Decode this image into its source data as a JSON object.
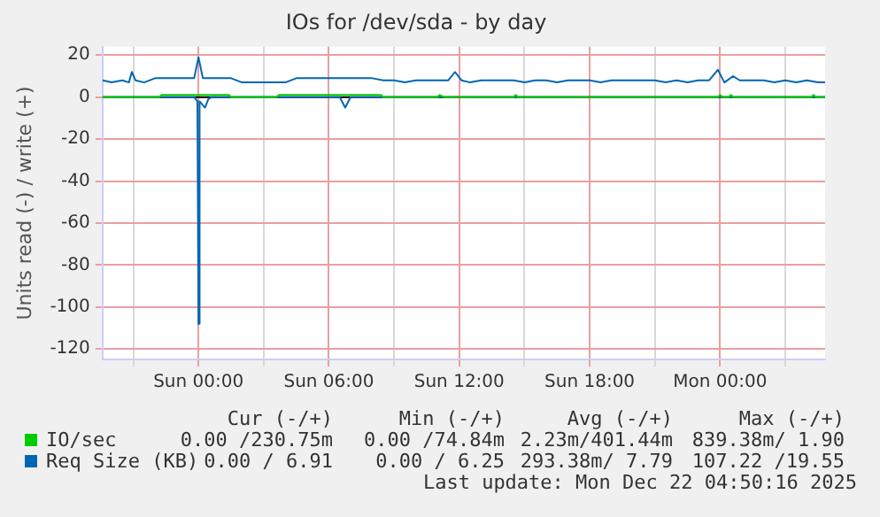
{
  "chart_data": {
    "type": "line",
    "title": "IOs for /dev/sda - by day",
    "ylabel": "Units read (-) / write (+)",
    "xlim": [
      "2025-12-20T19:35",
      "2025-12-22T04:50"
    ],
    "xticks": [
      {
        "value": "2025-12-20T21:00",
        "label": null
      },
      {
        "value": "2025-12-21T00:00",
        "label": "Sun 00:00"
      },
      {
        "value": "2025-12-21T03:00",
        "label": null
      },
      {
        "value": "2025-12-21T06:00",
        "label": "Sun 06:00"
      },
      {
        "value": "2025-12-21T09:00",
        "label": null
      },
      {
        "value": "2025-12-21T12:00",
        "label": "Sun 12:00"
      },
      {
        "value": "2025-12-21T15:00",
        "label": null
      },
      {
        "value": "2025-12-21T18:00",
        "label": "Sun 18:00"
      },
      {
        "value": "2025-12-21T21:00",
        "label": null
      },
      {
        "value": "2025-12-22T00:00",
        "label": "Mon 00:00"
      },
      {
        "value": "2025-12-22T03:00",
        "label": null
      }
    ],
    "ylim": [
      -125,
      24
    ],
    "yticks": [
      -120,
      -100,
      -80,
      -60,
      -40,
      -20,
      0,
      20
    ],
    "grid": true,
    "legend": "bottom",
    "marker": "none",
    "line_style": "solid",
    "ref_lines": [
      {
        "axis": "y",
        "value": 0,
        "color": "#000000"
      }
    ],
    "series": [
      {
        "name": "IO/sec",
        "color": "#00cc00",
        "x": [
          "2025-12-20T19:35",
          "2025-12-20T22:12",
          "2025-12-20T22:18",
          "2025-12-21T01:24",
          "2025-12-21T01:30",
          "2025-12-21T03:36",
          "2025-12-21T03:42",
          "2025-12-21T08:24",
          "2025-12-21T08:30",
          "2025-12-21T11:00",
          "2025-12-21T11:06",
          "2025-12-21T11:18",
          "2025-12-21T14:30",
          "2025-12-21T14:36",
          "2025-12-21T14:42",
          "2025-12-21T23:54",
          "2025-12-22T00:00",
          "2025-12-22T00:06",
          "2025-12-22T00:24",
          "2025-12-22T00:30",
          "2025-12-22T00:36",
          "2025-12-22T04:12",
          "2025-12-22T04:18",
          "2025-12-22T04:24",
          "2025-12-22T04:50"
        ],
        "values": [
          0,
          0,
          1,
          1,
          0,
          0,
          1,
          1,
          0,
          0,
          1,
          0,
          0,
          1,
          0,
          0,
          1,
          0,
          0,
          1,
          0,
          0,
          1,
          0,
          0
        ]
      },
      {
        "name": "Req Size (KB)",
        "color": "#0066b3",
        "x": [
          "2025-12-20T19:35",
          "2025-12-20T20:00",
          "2025-12-20T20:30",
          "2025-12-20T20:48",
          "2025-12-20T20:56",
          "2025-12-20T21:06",
          "2025-12-20T21:30",
          "2025-12-20T22:00",
          "2025-12-20T22:30",
          "2025-12-20T23:00",
          "2025-12-20T23:30",
          "2025-12-20T23:48",
          "2025-12-21T00:00",
          "2025-12-21T00:12",
          "2025-12-21T00:30",
          "2025-12-21T01:00",
          "2025-12-21T01:30",
          "2025-12-21T02:00",
          "2025-12-21T02:30",
          "2025-12-21T03:00",
          "2025-12-21T03:30",
          "2025-12-21T04:00",
          "2025-12-21T04:30",
          "2025-12-21T05:00",
          "2025-12-21T05:30",
          "2025-12-21T06:00",
          "2025-12-21T06:30",
          "2025-12-21T07:00",
          "2025-12-21T07:30",
          "2025-12-21T08:00",
          "2025-12-21T08:30",
          "2025-12-21T09:00",
          "2025-12-21T09:30",
          "2025-12-21T10:00",
          "2025-12-21T10:30",
          "2025-12-21T11:00",
          "2025-12-21T11:30",
          "2025-12-21T11:48",
          "2025-12-21T12:06",
          "2025-12-21T12:30",
          "2025-12-21T13:00",
          "2025-12-21T13:30",
          "2025-12-21T14:00",
          "2025-12-21T14:30",
          "2025-12-21T15:00",
          "2025-12-21T15:30",
          "2025-12-21T16:00",
          "2025-12-21T16:30",
          "2025-12-21T17:00",
          "2025-12-21T17:30",
          "2025-12-21T18:00",
          "2025-12-21T18:30",
          "2025-12-21T19:00",
          "2025-12-21T19:30",
          "2025-12-21T20:00",
          "2025-12-21T20:30",
          "2025-12-21T21:00",
          "2025-12-21T21:30",
          "2025-12-21T22:00",
          "2025-12-21T22:30",
          "2025-12-21T23:00",
          "2025-12-21T23:30",
          "2025-12-21T23:54",
          "2025-12-22T00:12",
          "2025-12-22T00:36",
          "2025-12-22T00:54",
          "2025-12-22T01:30",
          "2025-12-22T02:00",
          "2025-12-22T02:30",
          "2025-12-22T03:00",
          "2025-12-22T03:30",
          "2025-12-22T04:00",
          "2025-12-22T04:30",
          "2025-12-22T04:50"
        ],
        "values": [
          8,
          7,
          8,
          7,
          12,
          8,
          7,
          9,
          9,
          9,
          9,
          9,
          19,
          9,
          9,
          9,
          9,
          7,
          7,
          7,
          7,
          7,
          9,
          9,
          9,
          9,
          9,
          9,
          9,
          9,
          8,
          8,
          7,
          8,
          8,
          8,
          8,
          12,
          8,
          7,
          8,
          8,
          8,
          8,
          7,
          8,
          8,
          7,
          8,
          8,
          8,
          7,
          8,
          8,
          8,
          8,
          8,
          7,
          8,
          7,
          8,
          8,
          13,
          7,
          10,
          8,
          8,
          8,
          7,
          8,
          7,
          8,
          7,
          7
        ]
      },
      {
        "color": "#0066b3",
        "x": [
          "2025-12-20T19:35",
          "2025-12-20T23:48",
          "2025-12-20T23:57",
          "2025-12-21T00:00",
          "2025-12-21T00:03",
          "2025-12-21T00:18",
          "2025-12-21T00:27",
          "2025-12-21T00:36",
          "2025-12-21T06:30",
          "2025-12-21T06:45",
          "2025-12-21T07:00",
          "2025-12-22T04:50"
        ],
        "values": [
          0,
          0,
          -2,
          -108,
          -2,
          -5,
          -1,
          0,
          0,
          -5,
          0,
          0
        ]
      }
    ],
    "annotations": [
      "Cur (-/+)",
      "Min (-/+)",
      "Avg (-/+)",
      "Max (-/+)",
      "0.00 /230.75m",
      "0.00 /74.84m",
      "2.23m/401.44m",
      "839.38m/ 1.90",
      "0.00 / 6.91",
      "0.00 / 6.25",
      "293.38m/ 7.79",
      "107.22 /19.55",
      "Last update: Mon Dec 22 04:50:16 2025"
    ]
  }
}
